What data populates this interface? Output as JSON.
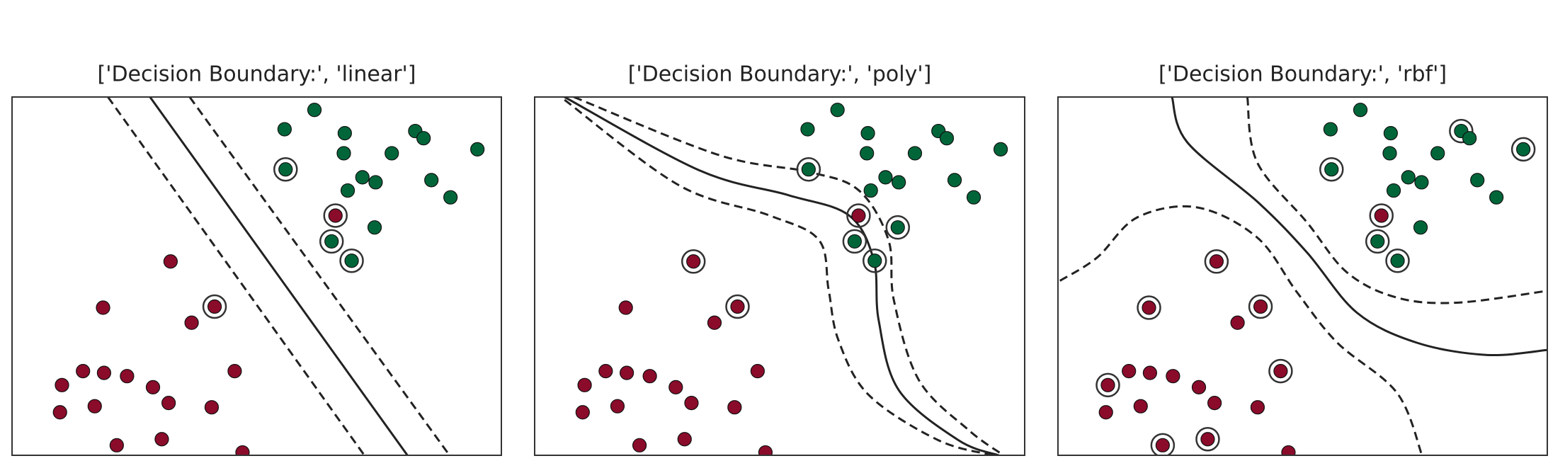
{
  "chart_data": [
    {
      "type": "scatter",
      "title": "['Decision Boundary:', 'linear']",
      "xlim": [
        0,
        100
      ],
      "ylim": [
        0,
        100
      ],
      "series": [
        {
          "color": "#8b0b2b",
          "x": [
            66.1,
            41.4,
            32.4,
            18.6,
            36.7,
            14.5,
            18.8,
            23.5,
            10.2,
            28.8,
            45.5,
            9.8,
            16.9,
            32.0,
            40.8,
            21.4,
            30.6,
            47.1
          ],
          "values": [
            66.9,
            41.5,
            54.1,
            41.2,
            37.0,
            23.5,
            23.0,
            22.1,
            19.6,
            19.0,
            23.5,
            12.0,
            13.7,
            14.6,
            13.4,
            2.8,
            4.5,
            0.8
          ],
          "circled": [
            true,
            true,
            false,
            false,
            false,
            false,
            false,
            false,
            false,
            false,
            false,
            false,
            false,
            false,
            false,
            false,
            false,
            false
          ]
        },
        {
          "color": "#00663a",
          "x": [
            55.7,
            61.8,
            68.0,
            67.8,
            77.6,
            82.4,
            84.1,
            95.1,
            55.9,
            71.6,
            74.3,
            68.6,
            85.7,
            89.6,
            74.1,
            65.3,
            69.4
          ],
          "values": [
            91.0,
            96.4,
            89.9,
            84.3,
            84.3,
            90.5,
            88.5,
            85.4,
            79.8,
            77.6,
            76.2,
            73.9,
            76.8,
            72.0,
            63.6,
            59.7,
            54.3
          ],
          "circled": [
            false,
            false,
            false,
            false,
            false,
            false,
            false,
            false,
            true,
            false,
            false,
            false,
            false,
            false,
            false,
            true,
            true
          ]
        }
      ],
      "lines": [
        {
          "dashed": false,
          "x": [
            28.2,
            80.8
          ],
          "y": [
            100,
            0
          ]
        },
        {
          "dashed": true,
          "x": [
            19.6,
            72.0
          ],
          "y": [
            100,
            0
          ]
        },
        {
          "dashed": true,
          "x": [
            36.3,
            89.4
          ],
          "y": [
            100,
            0
          ]
        }
      ]
    },
    {
      "type": "scatter",
      "title": "['Decision Boundary:', 'poly']",
      "xlim": [
        0,
        100
      ],
      "ylim": [
        0,
        100
      ],
      "series": [
        {
          "color": "#8b0b2b",
          "x": [
            66.1,
            41.4,
            32.4,
            18.6,
            36.7,
            14.5,
            18.8,
            23.5,
            10.2,
            28.8,
            45.5,
            9.8,
            16.9,
            32.0,
            40.8,
            21.4,
            30.6,
            47.1
          ],
          "values": [
            66.9,
            41.5,
            54.1,
            41.2,
            37.0,
            23.5,
            23.0,
            22.1,
            19.6,
            19.0,
            23.5,
            12.0,
            13.7,
            14.6,
            13.4,
            2.8,
            4.5,
            0.8
          ],
          "circled": [
            true,
            true,
            true,
            false,
            false,
            false,
            false,
            false,
            false,
            false,
            false,
            false,
            false,
            false,
            false,
            false,
            false,
            false
          ]
        },
        {
          "color": "#00663a",
          "x": [
            55.7,
            61.8,
            68.0,
            67.8,
            77.6,
            82.4,
            84.1,
            95.1,
            55.9,
            71.6,
            74.3,
            68.6,
            85.7,
            89.6,
            74.1,
            65.3,
            69.4
          ],
          "values": [
            91.0,
            96.4,
            89.9,
            84.3,
            84.3,
            90.5,
            88.5,
            85.4,
            79.8,
            77.6,
            76.2,
            73.9,
            76.8,
            72.0,
            63.6,
            59.7,
            54.3
          ],
          "circled": [
            false,
            false,
            false,
            false,
            false,
            false,
            false,
            false,
            true,
            false,
            false,
            false,
            false,
            false,
            true,
            true,
            true
          ]
        }
      ],
      "lines": [
        {
          "dashed": false,
          "x": [
            6.1,
            33.5,
            51.8,
            64.1,
            69.2,
            70.2,
            74.3,
            86.5,
            94.7
          ],
          "y": [
            100,
            79.6,
            72.6,
            67.0,
            54.5,
            37.7,
            18.2,
            4.2,
            0
          ]
        },
        {
          "dashed": true,
          "x": [
            8.0,
            37.6,
            55.9,
            66.1,
            72.2,
            73.3,
            78.4,
            88.6,
            95.7
          ],
          "y": [
            100,
            83.8,
            79.1,
            74.0,
            60.1,
            43.3,
            21.0,
            7.0,
            0
          ]
        },
        {
          "dashed": true,
          "x": [
            6.1,
            29.4,
            47.8,
            58.0,
            60.0,
            62.0,
            68.2,
            82.4,
            93.7
          ],
          "y": [
            99.2,
            75.4,
            67.0,
            60.1,
            46.1,
            32.1,
            16.8,
            4.2,
            0
          ]
        }
      ]
    },
    {
      "type": "scatter",
      "title": "['Decision Boundary:', 'rbf']",
      "xlim": [
        0,
        100
      ],
      "ylim": [
        0,
        100
      ],
      "series": [
        {
          "color": "#8b0b2b",
          "x": [
            66.1,
            41.4,
            32.4,
            18.6,
            36.7,
            14.5,
            18.8,
            23.5,
            10.2,
            28.8,
            45.5,
            9.8,
            16.9,
            32.0,
            40.8,
            21.4,
            30.6,
            47.1
          ],
          "values": [
            66.9,
            41.5,
            54.1,
            41.2,
            37.0,
            23.5,
            23.0,
            22.1,
            19.6,
            19.0,
            23.5,
            12.0,
            13.7,
            14.6,
            13.4,
            2.8,
            4.5,
            0.8
          ],
          "circled": [
            true,
            true,
            true,
            true,
            false,
            false,
            false,
            false,
            true,
            false,
            true,
            false,
            false,
            false,
            false,
            true,
            true,
            false
          ]
        },
        {
          "color": "#00663a",
          "x": [
            55.7,
            61.8,
            68.0,
            67.8,
            77.6,
            82.4,
            84.1,
            95.1,
            55.9,
            71.6,
            74.3,
            68.6,
            85.7,
            89.6,
            74.1,
            65.3,
            69.4
          ],
          "values": [
            91.0,
            96.4,
            89.9,
            84.3,
            84.3,
            90.5,
            88.5,
            85.4,
            79.8,
            77.6,
            76.2,
            73.9,
            76.8,
            72.0,
            63.6,
            59.7,
            54.3
          ],
          "circled": [
            false,
            false,
            false,
            false,
            false,
            true,
            false,
            true,
            true,
            false,
            false,
            false,
            false,
            false,
            false,
            true,
            true
          ]
        }
      ],
      "lines": [
        {
          "dashed": false,
          "x": [
            23.3,
            26.4,
            40.9,
            50.9,
            61.1,
            73.4,
            87.7,
            100
          ],
          "y": [
            100,
            87.4,
            70.6,
            56.6,
            39.8,
            31.4,
            28.0,
            29.4
          ]
        },
        {
          "dashed": true,
          "x": [
            38.7,
            40.7,
            50.9,
            59.1,
            69.3,
            81.6,
            100
          ],
          "y": [
            100,
            81.8,
            65.0,
            51.0,
            44.0,
            42.6,
            45.9
          ]
        },
        {
          "dashed": true,
          "x": [
            0.4,
            8.0,
            16.2,
            28.4,
            40.7,
            48.9,
            57.1,
            69.3,
            74.4
          ],
          "y": [
            48.7,
            55.2,
            66.4,
            69.2,
            60.8,
            45.4,
            31.4,
            17.4,
            0
          ]
        }
      ]
    }
  ]
}
